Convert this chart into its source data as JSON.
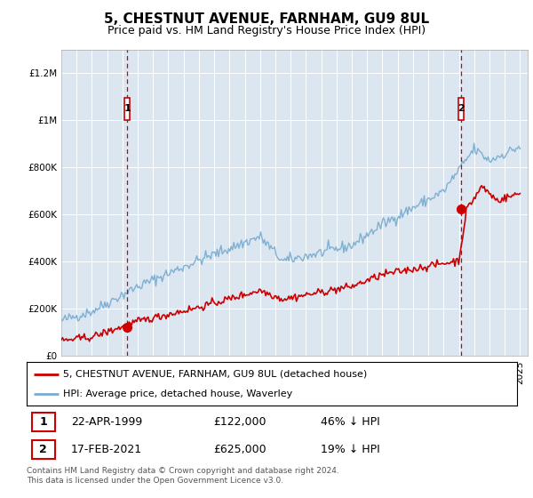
{
  "title": "5, CHESTNUT AVENUE, FARNHAM, GU9 8UL",
  "subtitle": "Price paid vs. HM Land Registry's House Price Index (HPI)",
  "ylim": [
    0,
    1300000
  ],
  "yticks": [
    0,
    200000,
    400000,
    600000,
    800000,
    1000000,
    1200000
  ],
  "ytick_labels": [
    "£0",
    "£200K",
    "£400K",
    "£600K",
    "£800K",
    "£1M",
    "£1.2M"
  ],
  "plot_bg_color": "#dce6f1",
  "sale1_date_num": 1999.31,
  "sale1_price": 122000,
  "sale2_date_num": 2021.12,
  "sale2_price": 625000,
  "red_color": "#cc0000",
  "blue_color": "#7aadcf",
  "legend_label1": "5, CHESTNUT AVENUE, FARNHAM, GU9 8UL (detached house)",
  "legend_label2": "HPI: Average price, detached house, Waverley",
  "table_row1": [
    "1",
    "22-APR-1999",
    "£122,000",
    "46% ↓ HPI"
  ],
  "table_row2": [
    "2",
    "17-FEB-2021",
    "£625,000",
    "19% ↓ HPI"
  ],
  "footer": "Contains HM Land Registry data © Crown copyright and database right 2024.\nThis data is licensed under the Open Government Licence v3.0.",
  "title_fontsize": 11,
  "subtitle_fontsize": 9,
  "axis_fontsize": 7.5,
  "legend_fontsize": 8
}
